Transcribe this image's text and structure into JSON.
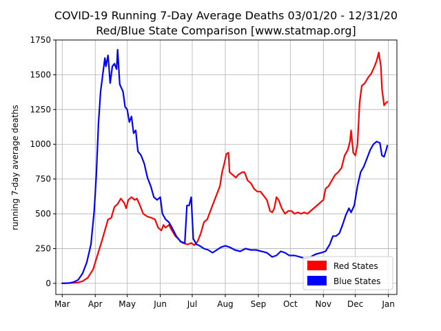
{
  "chart_data": {
    "type": "line",
    "title_lines": [
      "COVID-19 Running 7-Day Average Deaths 03/01/20 - 12/31/20",
      "Red/Blue State Comparison  [www.statmap.org]"
    ],
    "xlabel": "",
    "ylabel": "running 7-day average deaths",
    "xlim": [
      "2020-02-24",
      "2021-01-09"
    ],
    "ylim": [
      -80,
      1750
    ],
    "x_ticks": [
      {
        "date": "2020-03-01",
        "label": "Mar"
      },
      {
        "date": "2020-04-01",
        "label": "Apr"
      },
      {
        "date": "2020-05-01",
        "label": "May"
      },
      {
        "date": "2020-06-01",
        "label": "Jun"
      },
      {
        "date": "2020-07-01",
        "label": "Jul"
      },
      {
        "date": "2020-08-01",
        "label": "Aug"
      },
      {
        "date": "2020-09-01",
        "label": "Sep"
      },
      {
        "date": "2020-10-01",
        "label": "Oct"
      },
      {
        "date": "2020-11-01",
        "label": "Nov"
      },
      {
        "date": "2020-12-01",
        "label": "Dec"
      },
      {
        "date": "2021-01-01",
        "label": "Jan"
      }
    ],
    "y_ticks": [
      0,
      250,
      500,
      750,
      1000,
      1250,
      1500,
      1750
    ],
    "grid": true,
    "legend_position": "bottom-right",
    "series": [
      {
        "name": "Red States",
        "color": "#ff0000",
        "points": [
          [
            "2020-03-01",
            0
          ],
          [
            "2020-03-08",
            2
          ],
          [
            "2020-03-15",
            5
          ],
          [
            "2020-03-20",
            15
          ],
          [
            "2020-03-25",
            40
          ],
          [
            "2020-03-30",
            100
          ],
          [
            "2020-04-03",
            200
          ],
          [
            "2020-04-07",
            300
          ],
          [
            "2020-04-10",
            380
          ],
          [
            "2020-04-13",
            460
          ],
          [
            "2020-04-16",
            470
          ],
          [
            "2020-04-19",
            550
          ],
          [
            "2020-04-22",
            570
          ],
          [
            "2020-04-25",
            610
          ],
          [
            "2020-04-28",
            580
          ],
          [
            "2020-04-30",
            540
          ],
          [
            "2020-05-02",
            600
          ],
          [
            "2020-05-05",
            620
          ],
          [
            "2020-05-08",
            600
          ],
          [
            "2020-05-10",
            610
          ],
          [
            "2020-05-13",
            560
          ],
          [
            "2020-05-16",
            500
          ],
          [
            "2020-05-20",
            480
          ],
          [
            "2020-05-24",
            470
          ],
          [
            "2020-05-27",
            460
          ],
          [
            "2020-05-30",
            400
          ],
          [
            "2020-06-02",
            380
          ],
          [
            "2020-06-04",
            420
          ],
          [
            "2020-06-06",
            400
          ],
          [
            "2020-06-09",
            420
          ],
          [
            "2020-06-12",
            380
          ],
          [
            "2020-06-15",
            340
          ],
          [
            "2020-06-18",
            320
          ],
          [
            "2020-06-21",
            295
          ],
          [
            "2020-06-24",
            285
          ],
          [
            "2020-06-27",
            280
          ],
          [
            "2020-06-30",
            290
          ],
          [
            "2020-07-03",
            275
          ],
          [
            "2020-07-06",
            300
          ],
          [
            "2020-07-09",
            360
          ],
          [
            "2020-07-12",
            440
          ],
          [
            "2020-07-15",
            460
          ],
          [
            "2020-07-18",
            520
          ],
          [
            "2020-07-21",
            580
          ],
          [
            "2020-07-24",
            640
          ],
          [
            "2020-07-27",
            700
          ],
          [
            "2020-07-29",
            800
          ],
          [
            "2020-07-31",
            860
          ],
          [
            "2020-08-02",
            930
          ],
          [
            "2020-08-04",
            940
          ],
          [
            "2020-08-05",
            800
          ],
          [
            "2020-08-08",
            780
          ],
          [
            "2020-08-11",
            760
          ],
          [
            "2020-08-13",
            780
          ],
          [
            "2020-08-15",
            790
          ],
          [
            "2020-08-17",
            800
          ],
          [
            "2020-08-19",
            800
          ],
          [
            "2020-08-22",
            740
          ],
          [
            "2020-08-25",
            720
          ],
          [
            "2020-08-28",
            680
          ],
          [
            "2020-08-31",
            660
          ],
          [
            "2020-09-03",
            660
          ],
          [
            "2020-09-06",
            630
          ],
          [
            "2020-09-09",
            600
          ],
          [
            "2020-09-12",
            520
          ],
          [
            "2020-09-14",
            510
          ],
          [
            "2020-09-16",
            540
          ],
          [
            "2020-09-18",
            620
          ],
          [
            "2020-09-20",
            600
          ],
          [
            "2020-09-23",
            540
          ],
          [
            "2020-09-26",
            500
          ],
          [
            "2020-09-29",
            520
          ],
          [
            "2020-10-02",
            520
          ],
          [
            "2020-10-05",
            500
          ],
          [
            "2020-10-08",
            510
          ],
          [
            "2020-10-11",
            500
          ],
          [
            "2020-10-14",
            510
          ],
          [
            "2020-10-17",
            500
          ],
          [
            "2020-10-20",
            520
          ],
          [
            "2020-10-23",
            540
          ],
          [
            "2020-10-26",
            560
          ],
          [
            "2020-10-29",
            580
          ],
          [
            "2020-11-01",
            600
          ],
          [
            "2020-11-03",
            680
          ],
          [
            "2020-11-06",
            700
          ],
          [
            "2020-11-09",
            740
          ],
          [
            "2020-11-12",
            780
          ],
          [
            "2020-11-15",
            800
          ],
          [
            "2020-11-18",
            830
          ],
          [
            "2020-11-21",
            920
          ],
          [
            "2020-11-24",
            960
          ],
          [
            "2020-11-26",
            1020
          ],
          [
            "2020-11-27",
            1100
          ],
          [
            "2020-11-29",
            940
          ],
          [
            "2020-12-01",
            920
          ],
          [
            "2020-12-03",
            1000
          ],
          [
            "2020-12-05",
            1300
          ],
          [
            "2020-12-07",
            1420
          ],
          [
            "2020-12-10",
            1440
          ],
          [
            "2020-12-13",
            1480
          ],
          [
            "2020-12-16",
            1510
          ],
          [
            "2020-12-19",
            1560
          ],
          [
            "2020-12-21",
            1600
          ],
          [
            "2020-12-23",
            1660
          ],
          [
            "2020-12-25",
            1560
          ],
          [
            "2020-12-26",
            1400
          ],
          [
            "2020-12-28",
            1280
          ],
          [
            "2020-12-30",
            1300
          ],
          [
            "2020-12-31",
            1305
          ]
        ]
      },
      {
        "name": "Blue States",
        "color": "#0000ff",
        "points": [
          [
            "2020-03-01",
            0
          ],
          [
            "2020-03-08",
            3
          ],
          [
            "2020-03-12",
            10
          ],
          [
            "2020-03-16",
            25
          ],
          [
            "2020-03-20",
            70
          ],
          [
            "2020-03-24",
            150
          ],
          [
            "2020-03-28",
            280
          ],
          [
            "2020-03-31",
            520
          ],
          [
            "2020-04-02",
            780
          ],
          [
            "2020-04-04",
            1150
          ],
          [
            "2020-04-06",
            1380
          ],
          [
            "2020-04-08",
            1500
          ],
          [
            "2020-04-10",
            1620
          ],
          [
            "2020-04-11",
            1560
          ],
          [
            "2020-04-13",
            1640
          ],
          [
            "2020-04-15",
            1440
          ],
          [
            "2020-04-17",
            1560
          ],
          [
            "2020-04-19",
            1580
          ],
          [
            "2020-04-21",
            1540
          ],
          [
            "2020-04-22",
            1680
          ],
          [
            "2020-04-24",
            1430
          ],
          [
            "2020-04-27",
            1380
          ],
          [
            "2020-04-29",
            1270
          ],
          [
            "2020-05-01",
            1250
          ],
          [
            "2020-05-03",
            1160
          ],
          [
            "2020-05-05",
            1200
          ],
          [
            "2020-05-07",
            1080
          ],
          [
            "2020-05-09",
            1100
          ],
          [
            "2020-05-11",
            950
          ],
          [
            "2020-05-14",
            920
          ],
          [
            "2020-05-17",
            860
          ],
          [
            "2020-05-20",
            760
          ],
          [
            "2020-05-23",
            700
          ],
          [
            "2020-05-26",
            620
          ],
          [
            "2020-05-29",
            600
          ],
          [
            "2020-06-01",
            620
          ],
          [
            "2020-06-03",
            500
          ],
          [
            "2020-06-06",
            460
          ],
          [
            "2020-06-09",
            440
          ],
          [
            "2020-06-12",
            400
          ],
          [
            "2020-06-16",
            340
          ],
          [
            "2020-06-20",
            300
          ],
          [
            "2020-06-24",
            290
          ],
          [
            "2020-06-26",
            560
          ],
          [
            "2020-06-28",
            560
          ],
          [
            "2020-06-30",
            620
          ],
          [
            "2020-07-02",
            320
          ],
          [
            "2020-07-05",
            280
          ],
          [
            "2020-07-08",
            270
          ],
          [
            "2020-07-12",
            250
          ],
          [
            "2020-07-16",
            240
          ],
          [
            "2020-07-20",
            220
          ],
          [
            "2020-07-24",
            240
          ],
          [
            "2020-07-28",
            260
          ],
          [
            "2020-08-01",
            270
          ],
          [
            "2020-08-05",
            260
          ],
          [
            "2020-08-10",
            240
          ],
          [
            "2020-08-15",
            230
          ],
          [
            "2020-08-20",
            250
          ],
          [
            "2020-08-25",
            240
          ],
          [
            "2020-08-30",
            240
          ],
          [
            "2020-09-04",
            230
          ],
          [
            "2020-09-09",
            220
          ],
          [
            "2020-09-14",
            190
          ],
          [
            "2020-09-18",
            200
          ],
          [
            "2020-09-22",
            230
          ],
          [
            "2020-09-26",
            220
          ],
          [
            "2020-09-30",
            200
          ],
          [
            "2020-10-05",
            200
          ],
          [
            "2020-10-10",
            190
          ],
          [
            "2020-10-15",
            180
          ],
          [
            "2020-10-20",
            190
          ],
          [
            "2020-10-25",
            210
          ],
          [
            "2020-10-30",
            220
          ],
          [
            "2020-11-03",
            230
          ],
          [
            "2020-11-07",
            280
          ],
          [
            "2020-11-10",
            340
          ],
          [
            "2020-11-13",
            340
          ],
          [
            "2020-11-16",
            360
          ],
          [
            "2020-11-19",
            420
          ],
          [
            "2020-11-22",
            490
          ],
          [
            "2020-11-25",
            540
          ],
          [
            "2020-11-27",
            510
          ],
          [
            "2020-11-30",
            560
          ],
          [
            "2020-12-03",
            700
          ],
          [
            "2020-12-06",
            800
          ],
          [
            "2020-12-09",
            840
          ],
          [
            "2020-12-12",
            900
          ],
          [
            "2020-12-15",
            960
          ],
          [
            "2020-12-18",
            1000
          ],
          [
            "2020-12-21",
            1020
          ],
          [
            "2020-12-24",
            1010
          ],
          [
            "2020-12-26",
            920
          ],
          [
            "2020-12-28",
            910
          ],
          [
            "2020-12-30",
            960
          ],
          [
            "2020-12-31",
            990
          ]
        ]
      }
    ]
  }
}
